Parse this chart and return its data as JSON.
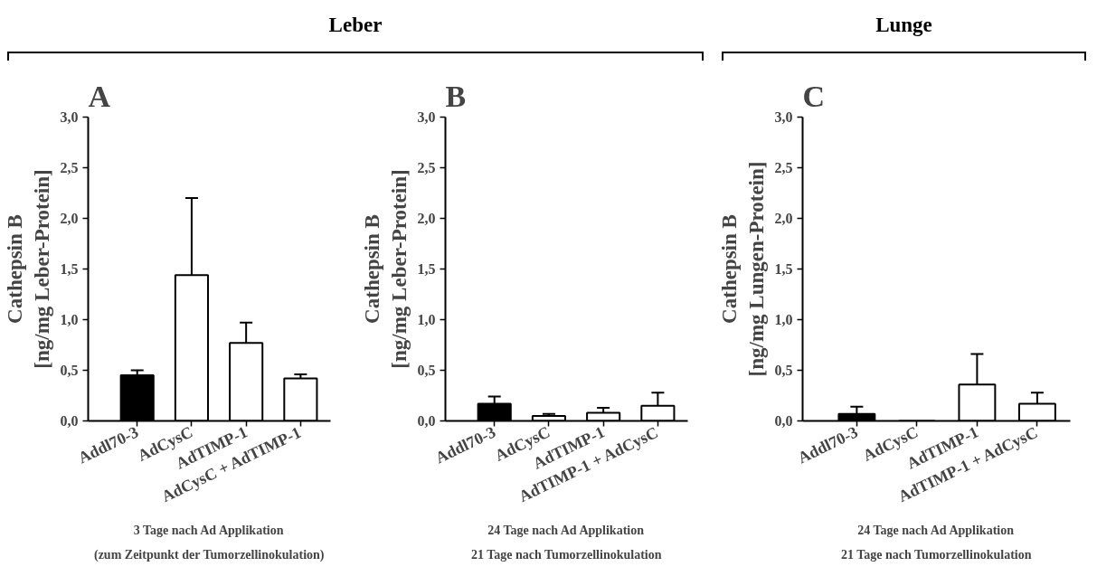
{
  "chart_data": [
    {
      "type": "bar",
      "title": "A",
      "subtitle": "Leber",
      "ylabel": "Cathepsin B\n[ng/mg Leber-Protein]",
      "categories": [
        "Addl70-3",
        "AdCysC",
        "AdTIMP-1",
        "AdCysC + AdTIMP-1"
      ],
      "values": [
        0.45,
        1.44,
        0.77,
        0.42
      ],
      "colors": [
        "#000000",
        "#ffffff",
        "#ffffff",
        "#ffffff"
      ],
      "errors": [
        [
          0.45,
          0.5
        ],
        [
          1.44,
          2.2
        ],
        [
          0.77,
          0.97
        ],
        [
          0.42,
          0.46
        ]
      ],
      "ylim": [
        0,
        3
      ],
      "yticks": [
        {
          "value": 0,
          "label": "0,0"
        },
        {
          "value": 0.5,
          "label": "0,5"
        },
        {
          "value": 1,
          "label": "1,0"
        },
        {
          "value": 1.5,
          "label": "1,5"
        },
        {
          "value": 2,
          "label": "2,0"
        },
        {
          "value": 2.5,
          "label": "2,5"
        },
        {
          "value": 3,
          "label": "3,0"
        }
      ],
      "annotations": [
        "3 Tage nach Ad Applikation",
        "(zum Zeitpunkt der Tumorzellinokulation)"
      ]
    },
    {
      "type": "bar",
      "title": "B",
      "ylabel": "Cathepsin B\n[ng/mg Leber-Protein]",
      "categories": [
        "Addl70-3",
        "AdCysC",
        "AdTIMP-1",
        "AdTIMP-1 + AdCysC"
      ],
      "values": [
        0.17,
        0.05,
        0.08,
        0.15
      ],
      "colors": [
        "#000000",
        "#ffffff",
        "#ffffff",
        "#ffffff"
      ],
      "errors": [
        [
          0.17,
          0.24
        ],
        [
          0.05,
          0.07
        ],
        [
          0.08,
          0.13
        ],
        [
          0.15,
          0.28
        ]
      ],
      "ylim": [
        0,
        3
      ],
      "yticks": [
        {
          "value": 0,
          "label": "0,0"
        },
        {
          "value": 0.5,
          "label": "0,5"
        },
        {
          "value": 1,
          "label": "1,0"
        },
        {
          "value": 1.5,
          "label": "1,5"
        },
        {
          "value": 2,
          "label": "2,0"
        },
        {
          "value": 2.5,
          "label": "2,5"
        },
        {
          "value": 3,
          "label": "3,0"
        }
      ],
      "annotations": [
        "24 Tage nach Ad Applikation",
        "21 Tage nach Tumorzellinokulation"
      ]
    },
    {
      "type": "bar",
      "title": "C",
      "subtitle": "Lunge",
      "ylabel": "Cathepsin B\n[ng/mg Lungen-Protein]",
      "categories": [
        "Addl70-3",
        "AdCysC",
        "AdTIMP-1",
        "AdTIMP-1 + AdCysC"
      ],
      "values": [
        0.07,
        0,
        0.36,
        0.17
      ],
      "colors": [
        "#000000",
        "#ffffff",
        "#ffffff",
        "#ffffff"
      ],
      "errors": [
        [
          0.07,
          0.14
        ],
        null,
        [
          0.36,
          0.66
        ],
        [
          0.17,
          0.28
        ]
      ],
      "ylim": [
        0,
        3
      ],
      "yticks": [
        {
          "value": 0,
          "label": "0,0"
        },
        {
          "value": 0.5,
          "label": "0,5"
        },
        {
          "value": 1,
          "label": "1,0"
        },
        {
          "value": 1.5,
          "label": "1,5"
        },
        {
          "value": 2,
          "label": "2,0"
        },
        {
          "value": 2.5,
          "label": "2,5"
        },
        {
          "value": 3,
          "label": "3,0"
        }
      ],
      "annotations": [
        "24 Tage nach Ad Applikation",
        "21 Tage nach Tumorzellinokulation"
      ]
    }
  ]
}
